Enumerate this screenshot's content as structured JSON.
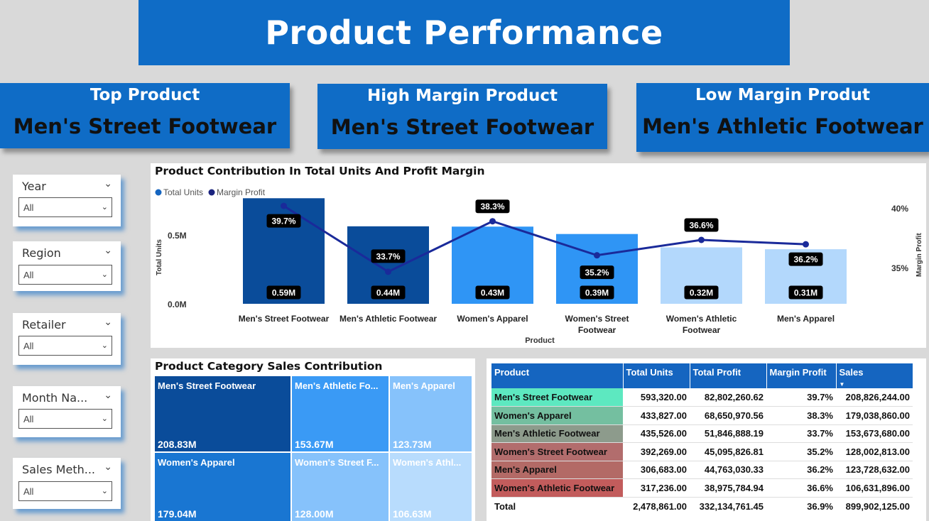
{
  "page_title": "Product Performance",
  "kpis": [
    {
      "label": "Top Product",
      "value": "Men's Street Footwear"
    },
    {
      "label": "High Margin Product",
      "value": "Men's Street Footwear"
    },
    {
      "label": "Low Margin Produt",
      "value": "Men's Athletic Footwear"
    }
  ],
  "slicers": [
    {
      "label": "Year",
      "value": "All"
    },
    {
      "label": "Region",
      "value": "All"
    },
    {
      "label": "Retailer",
      "value": "All"
    },
    {
      "label": "Month Na...",
      "value": "All"
    },
    {
      "label": "Sales Meth...",
      "value": "All"
    }
  ],
  "combo_chart": {
    "title": "Product Contribution In Total Units And Profit Margin",
    "legend": [
      {
        "name": "Total Units",
        "color": "#1565c0"
      },
      {
        "name": "Margin Profit",
        "color": "#1a237e"
      }
    ],
    "y_left_ticks": [
      "0.5M",
      "0.0M"
    ],
    "y_left_label": "Total Units",
    "y_right_ticks": [
      "40%",
      "35%"
    ],
    "y_right_label": "Margin Profit",
    "x_label": "Product"
  },
  "chart_data": [
    {
      "type": "bar",
      "title": "Product Contribution In Total Units And Profit Margin",
      "categories": [
        "Men's Street Footwear",
        "Men's Athletic Footwear",
        "Women's Apparel",
        "Women's Street Footwear",
        "Women's Athletic Footwear",
        "Men's Apparel"
      ],
      "category_lines": [
        [
          "Men's Street Footwear"
        ],
        [
          "Men's Athletic Footwear"
        ],
        [
          "Women's Apparel"
        ],
        [
          "Women's Street",
          "Footwear"
        ],
        [
          "Women's Athletic",
          "Footwear"
        ],
        [
          "Men's Apparel"
        ]
      ],
      "series": [
        {
          "name": "Total Units",
          "type": "bar",
          "values": [
            593320,
            435526,
            433827,
            392269,
            317236,
            306683
          ],
          "labels": [
            "0.59M",
            "0.44M",
            "0.43M",
            "0.39M",
            "0.32M",
            "0.31M"
          ],
          "colors": [
            "#0a4c9a",
            "#0a4c9a",
            "#2f95f5",
            "#2f95f5",
            "#b3d8fc",
            "#b3d8fc"
          ]
        },
        {
          "name": "Margin Profit",
          "type": "line",
          "axis": "right",
          "values": [
            39.7,
            33.7,
            38.3,
            35.2,
            36.6,
            36.2
          ],
          "labels": [
            "39.7%",
            "33.7%",
            "38.3%",
            "35.2%",
            "36.6%",
            "36.2%"
          ],
          "color": "#1a2a9a"
        }
      ],
      "xlabel": "Product",
      "ylabel": "Total Units",
      "y2label": "Margin Profit",
      "ylim": [
        0,
        0.75
      ],
      "y2lim": [
        30,
        41
      ],
      "legend": "top-left"
    },
    {
      "type": "heatmap",
      "title": "Product Category Sales Contribution",
      "cells": [
        {
          "name": "Men's Street Footwear",
          "label": "208.83M",
          "color": "#0a4c9a"
        },
        {
          "name": "Men's Athletic Fo...",
          "label": "153.67M",
          "color": "#3a9af5"
        },
        {
          "name": "Men's Apparel",
          "label": "123.73M",
          "color": "#86c2fb"
        },
        {
          "name": "Women's Apparel",
          "label": "179.04M",
          "color": "#1976d2"
        },
        {
          "name": "Women's Street F...",
          "label": "128.00M",
          "color": "#86c2fb"
        },
        {
          "name": "Women's Athl...",
          "label": "106.63M",
          "color": "#b8dcfd"
        }
      ]
    }
  ],
  "table": {
    "headers": [
      "Product",
      "Total Units",
      "Total Profit",
      "Margin Profit",
      "Sales"
    ],
    "rows": [
      {
        "product": "Men's Street Footwear",
        "color": "#5de8c0",
        "units": "593,320.00",
        "profit": "82,802,260.62",
        "margin": "39.7%",
        "sales": "208,826,244.00"
      },
      {
        "product": "Women's Apparel",
        "color": "#74bfa0",
        "units": "433,827.00",
        "profit": "68,650,970.56",
        "margin": "38.3%",
        "sales": "179,038,860.00"
      },
      {
        "product": "Men's Athletic Footwear",
        "color": "#8d9b8c",
        "units": "435,526.00",
        "profit": "51,846,888.19",
        "margin": "33.7%",
        "sales": "153,673,680.00"
      },
      {
        "product": "Women's Street Footwear",
        "color": "#b26d6d",
        "units": "392,269.00",
        "profit": "45,095,826.81",
        "margin": "35.2%",
        "sales": "128,002,813.00"
      },
      {
        "product": "Men's Apparel",
        "color": "#b36a66",
        "units": "306,683.00",
        "profit": "44,763,030.33",
        "margin": "36.2%",
        "sales": "123,728,632.00"
      },
      {
        "product": "Women's Athletic Footwear",
        "color": "#c25c5c",
        "units": "317,236.00",
        "profit": "38,975,784.94",
        "margin": "36.6%",
        "sales": "106,631,896.00"
      }
    ],
    "total": {
      "label": "Total",
      "units": "2,478,861.00",
      "profit": "332,134,761.45",
      "margin": "36.9%",
      "sales": "899,902,125.00"
    }
  }
}
